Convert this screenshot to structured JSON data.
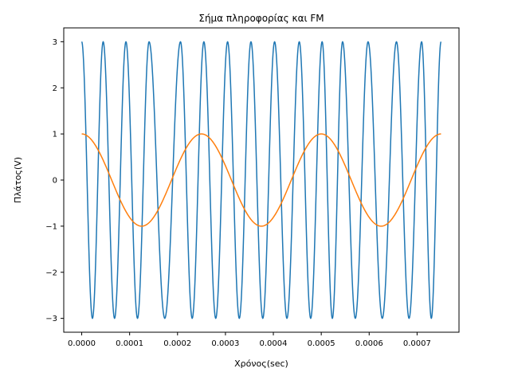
{
  "chart_data": {
    "type": "line",
    "title": "Σήμα πληροφορίας και FM",
    "xlabel": "Χρόνος(sec)",
    "ylabel": "Πλάτος(V)",
    "xlim": [
      -3.75e-05,
      0.0007875
    ],
    "ylim": [
      -3.3,
      3.3
    ],
    "xticks": [
      0,
      0.0001,
      0.0002,
      0.0003,
      0.0004,
      0.0005,
      0.0006,
      0.0007
    ],
    "xtick_labels": [
      "0.0000",
      "0.0001",
      "0.0002",
      "0.0003",
      "0.0004",
      "0.0005",
      "0.0006",
      "0.0007"
    ],
    "yticks": [
      -3,
      -2,
      -1,
      0,
      1,
      2,
      3
    ],
    "ytick_labels": [
      "−3",
      "−2",
      "−1",
      "0",
      "1",
      "2",
      "3"
    ],
    "grid": false,
    "legend": "none",
    "series": [
      {
        "description": "FM modulated signal",
        "color": "#1f77b4",
        "x_range": [
          0,
          0.00075
        ],
        "amplitude": 3,
        "peak_times": [
          0,
          4.48e-05,
          9.23e-05,
          0.0001406,
          0.0002062,
          0.000255,
          0.0003045,
          0.0003533,
          0.0004026,
          0.0004541,
          0.0005018,
          0.0005445,
          0.0005977,
          0.000657,
          0.0007095,
          0.00075
        ]
      },
      {
        "description": "Information (message) signal",
        "color": "#ff7f0e",
        "x_range": [
          0,
          0.00075
        ],
        "amplitude": 1,
        "frequency_hz": 4000,
        "phase": "cosine",
        "samples_x": [
          0,
          6.25e-05,
          0.000125,
          0.0001875,
          0.00025,
          0.0003125,
          0.000375,
          0.0004375,
          0.0005,
          0.0005625,
          0.000625,
          0.0006875,
          0.00075
        ],
        "samples_y": [
          1,
          0,
          -1,
          0,
          1,
          0,
          -1,
          0,
          1,
          0,
          -1,
          0,
          1
        ]
      }
    ]
  }
}
